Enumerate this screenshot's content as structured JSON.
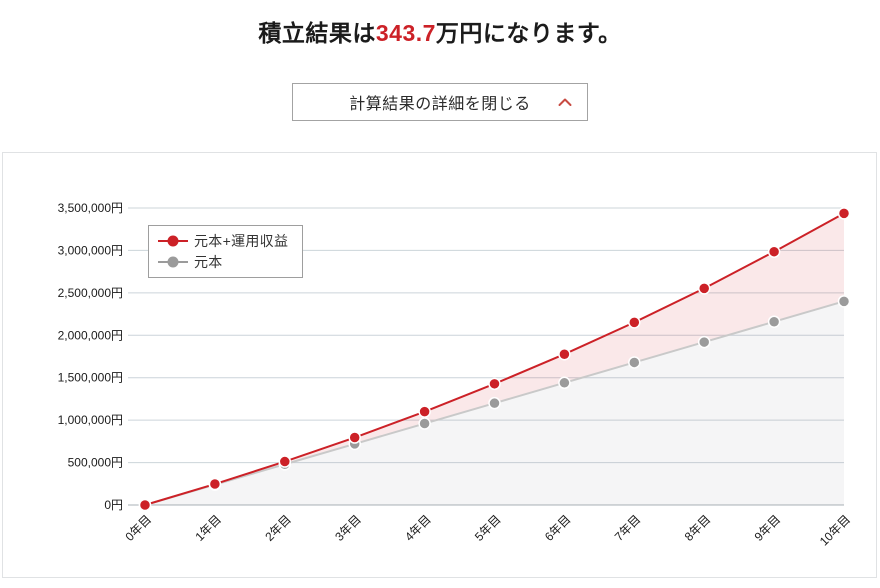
{
  "page": {
    "title": {
      "prefix": "積立結果は",
      "value": "343.7",
      "suffix": "万円になります。"
    },
    "accent_color": "#cc2127"
  },
  "toggle_button": {
    "label": "計算結果の詳細を閉じる",
    "chevron_icon": "chevron-up",
    "chevron_color": "#c84b42"
  },
  "chart_data": {
    "type": "line",
    "title": "",
    "categories": [
      "0年目",
      "1年目",
      "2年目",
      "3年目",
      "4年目",
      "5年目",
      "6年目",
      "7年目",
      "8年目",
      "9年目",
      "10年目"
    ],
    "series": [
      {
        "name": "元本+運用収益",
        "values": [
          0,
          247000,
          512000,
          795000,
          1100000,
          1428000,
          1777000,
          2152000,
          2553000,
          2985000,
          3437000
        ],
        "line_color": "#cc2127",
        "point_color": "#cc2127",
        "area_fill": "rgba(204,33,39,0.10)"
      },
      {
        "name": "元本",
        "values": [
          0,
          240000,
          480000,
          720000,
          960000,
          1200000,
          1440000,
          1680000,
          1920000,
          2160000,
          2400000
        ],
        "line_color": "#c9c9c9",
        "point_color": "#9b9b9b",
        "area_fill": "rgba(125,125,135,0.08)"
      }
    ],
    "y_ticks": [
      "0円",
      "500,000円",
      "1,000,000円",
      "1,500,000円",
      "2,000,000円",
      "2,500,000円",
      "3,000,000円",
      "3,500,000円"
    ],
    "y_tick_values": [
      0,
      500000,
      1000000,
      1500000,
      2000000,
      2500000,
      3000000,
      3500000
    ],
    "ylim": [
      0,
      3500000
    ],
    "xlabel": "",
    "ylabel": "",
    "grid": true,
    "grid_color": "#ccd4da",
    "axis_color": "#a9b1b7",
    "tick_label_color": "#1b1b1b",
    "legend_position": "top-left-inside"
  }
}
